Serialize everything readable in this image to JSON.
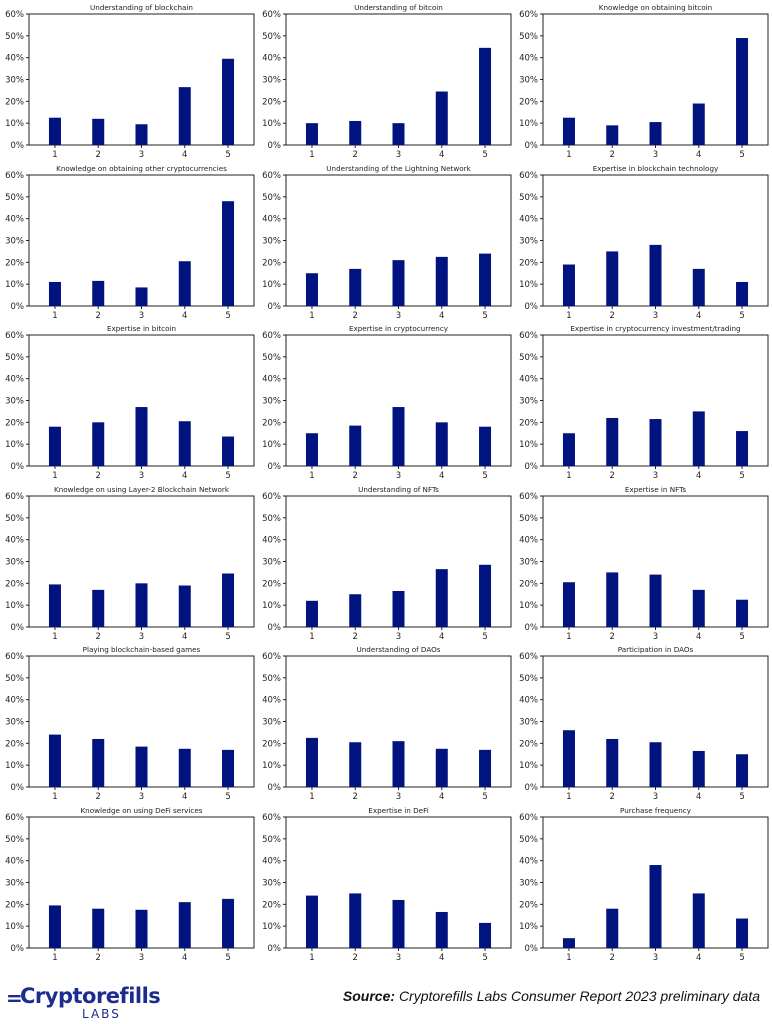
{
  "chart_data": [
    {
      "type": "bar",
      "title": "Understanding of blockchain",
      "categories": [
        "1",
        "2",
        "3",
        "4",
        "5"
      ],
      "values": [
        12.5,
        12,
        9.5,
        26.5,
        39.5
      ],
      "ylim": [
        0,
        60
      ],
      "yticks": [
        "0%",
        "10%",
        "20%",
        "30%",
        "40%",
        "50%",
        "60%"
      ],
      "color": "#00137f"
    },
    {
      "type": "bar",
      "title": "Understanding of bitcoin",
      "categories": [
        "1",
        "2",
        "3",
        "4",
        "5"
      ],
      "values": [
        10,
        11,
        10,
        24.5,
        44.5
      ],
      "ylim": [
        0,
        60
      ],
      "yticks": [
        "0%",
        "10%",
        "20%",
        "30%",
        "40%",
        "50%",
        "60%"
      ],
      "color": "#00137f"
    },
    {
      "type": "bar",
      "title": "Knowledge on obtaining bitcoin",
      "categories": [
        "1",
        "2",
        "3",
        "4",
        "5"
      ],
      "values": [
        12.5,
        9,
        10.5,
        19,
        49
      ],
      "ylim": [
        0,
        60
      ],
      "yticks": [
        "0%",
        "10%",
        "20%",
        "30%",
        "40%",
        "50%",
        "60%"
      ],
      "color": "#00137f"
    },
    {
      "type": "bar",
      "title": "Knowledge on obtaining other cryptocurrencies",
      "categories": [
        "1",
        "2",
        "3",
        "4",
        "5"
      ],
      "values": [
        11,
        11.5,
        8.5,
        20.5,
        48
      ],
      "ylim": [
        0,
        60
      ],
      "yticks": [
        "0%",
        "10%",
        "20%",
        "30%",
        "40%",
        "50%",
        "60%"
      ],
      "color": "#00137f"
    },
    {
      "type": "bar",
      "title": "Understanding of the Lightning Network",
      "categories": [
        "1",
        "2",
        "3",
        "4",
        "5"
      ],
      "values": [
        15,
        17,
        21,
        22.5,
        24
      ],
      "ylim": [
        0,
        60
      ],
      "yticks": [
        "0%",
        "10%",
        "20%",
        "30%",
        "40%",
        "50%",
        "60%"
      ],
      "color": "#00137f"
    },
    {
      "type": "bar",
      "title": "Expertise in blockchain technology",
      "categories": [
        "1",
        "2",
        "3",
        "4",
        "5"
      ],
      "values": [
        19,
        25,
        28,
        17,
        11
      ],
      "ylim": [
        0,
        60
      ],
      "yticks": [
        "0%",
        "10%",
        "20%",
        "30%",
        "40%",
        "50%",
        "60%"
      ],
      "color": "#00137f"
    },
    {
      "type": "bar",
      "title": "Expertise in bitcoin",
      "categories": [
        "1",
        "2",
        "3",
        "4",
        "5"
      ],
      "values": [
        18,
        20,
        27,
        20.5,
        13.5
      ],
      "ylim": [
        0,
        60
      ],
      "yticks": [
        "0%",
        "10%",
        "20%",
        "30%",
        "40%",
        "50%",
        "60%"
      ],
      "color": "#00137f"
    },
    {
      "type": "bar",
      "title": "Expertise in cryptocurrency",
      "categories": [
        "1",
        "2",
        "3",
        "4",
        "5"
      ],
      "values": [
        15,
        18.5,
        27,
        20,
        18
      ],
      "ylim": [
        0,
        60
      ],
      "yticks": [
        "0%",
        "10%",
        "20%",
        "30%",
        "40%",
        "50%",
        "60%"
      ],
      "color": "#00137f"
    },
    {
      "type": "bar",
      "title": "Expertise in cryptocurrency investment/trading",
      "categories": [
        "1",
        "2",
        "3",
        "4",
        "5"
      ],
      "values": [
        15,
        22,
        21.5,
        25,
        16
      ],
      "ylim": [
        0,
        60
      ],
      "yticks": [
        "0%",
        "10%",
        "20%",
        "30%",
        "40%",
        "50%",
        "60%"
      ],
      "color": "#00137f"
    },
    {
      "type": "bar",
      "title": "Knowledge on using Layer-2 Blockchain Network",
      "categories": [
        "1",
        "2",
        "3",
        "4",
        "5"
      ],
      "values": [
        19.5,
        17,
        20,
        19,
        24.5
      ],
      "ylim": [
        0,
        60
      ],
      "yticks": [
        "0%",
        "10%",
        "20%",
        "30%",
        "40%",
        "50%",
        "60%"
      ],
      "color": "#00137f"
    },
    {
      "type": "bar",
      "title": "Understanding of NFTs",
      "categories": [
        "1",
        "2",
        "3",
        "4",
        "5"
      ],
      "values": [
        12,
        15,
        16.5,
        26.5,
        28.5
      ],
      "ylim": [
        0,
        60
      ],
      "yticks": [
        "0%",
        "10%",
        "20%",
        "30%",
        "40%",
        "50%",
        "60%"
      ],
      "color": "#00137f"
    },
    {
      "type": "bar",
      "title": "Expertise in NFTs",
      "categories": [
        "1",
        "2",
        "3",
        "4",
        "5"
      ],
      "values": [
        20.5,
        25,
        24,
        17,
        12.5
      ],
      "ylim": [
        0,
        60
      ],
      "yticks": [
        "0%",
        "10%",
        "20%",
        "30%",
        "40%",
        "50%",
        "60%"
      ],
      "color": "#00137f"
    },
    {
      "type": "bar",
      "title": "Playing blockchain-based games",
      "categories": [
        "1",
        "2",
        "3",
        "4",
        "5"
      ],
      "values": [
        24,
        22,
        18.5,
        17.5,
        17
      ],
      "ylim": [
        0,
        60
      ],
      "yticks": [
        "0%",
        "10%",
        "20%",
        "30%",
        "40%",
        "50%",
        "60%"
      ],
      "color": "#00137f"
    },
    {
      "type": "bar",
      "title": "Understanding of DAOs",
      "categories": [
        "1",
        "2",
        "3",
        "4",
        "5"
      ],
      "values": [
        22.5,
        20.5,
        21,
        17.5,
        17
      ],
      "ylim": [
        0,
        60
      ],
      "yticks": [
        "0%",
        "10%",
        "20%",
        "30%",
        "40%",
        "50%",
        "60%"
      ],
      "color": "#00137f"
    },
    {
      "type": "bar",
      "title": "Participation in DAOs",
      "categories": [
        "1",
        "2",
        "3",
        "4",
        "5"
      ],
      "values": [
        26,
        22,
        20.5,
        16.5,
        15
      ],
      "ylim": [
        0,
        60
      ],
      "yticks": [
        "0%",
        "10%",
        "20%",
        "30%",
        "40%",
        "50%",
        "60%"
      ],
      "color": "#00137f"
    },
    {
      "type": "bar",
      "title": "Knowledge on using DeFi services",
      "categories": [
        "1",
        "2",
        "3",
        "4",
        "5"
      ],
      "values": [
        19.5,
        18,
        17.5,
        21,
        22.5
      ],
      "ylim": [
        0,
        60
      ],
      "yticks": [
        "0%",
        "10%",
        "20%",
        "30%",
        "40%",
        "50%",
        "60%"
      ],
      "color": "#00137f"
    },
    {
      "type": "bar",
      "title": "Expertise in DeFi",
      "categories": [
        "1",
        "2",
        "3",
        "4",
        "5"
      ],
      "values": [
        24,
        25,
        22,
        16.5,
        11.5
      ],
      "ylim": [
        0,
        60
      ],
      "yticks": [
        "0%",
        "10%",
        "20%",
        "30%",
        "40%",
        "50%",
        "60%"
      ],
      "color": "#00137f"
    },
    {
      "type": "bar",
      "title": "Purchase frequency",
      "categories": [
        "1",
        "2",
        "3",
        "4",
        "5"
      ],
      "values": [
        4.5,
        18,
        38,
        25,
        13.5
      ],
      "ylim": [
        0,
        60
      ],
      "yticks": [
        "0%",
        "10%",
        "20%",
        "30%",
        "40%",
        "50%",
        "60%"
      ],
      "color": "#00137f"
    }
  ],
  "footer": {
    "logo_mark": "=",
    "logo_name": "Cryptorefills",
    "logo_sub": "LABS",
    "source_label": "Source:",
    "source_text": "Cryptorefills Labs Consumer Report 2023 preliminary data",
    "brand_color": "#1c2d8f"
  }
}
